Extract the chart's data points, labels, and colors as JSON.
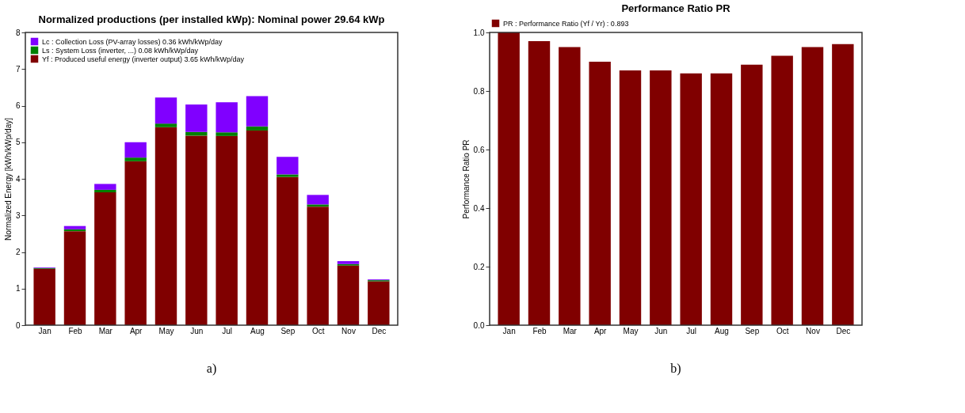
{
  "chart_data": [
    {
      "type": "bar",
      "title": "Normalized productions (per installed kWp):  Nominal power 29.64 kWp",
      "ylabel": "Normalized Energy [kWh/kWp/day]",
      "categories": [
        "Jan",
        "Feb",
        "Mar",
        "Apr",
        "May",
        "Jun",
        "Jul",
        "Aug",
        "Sep",
        "Oct",
        "Nov",
        "Dec"
      ],
      "stacked": true,
      "ylim": [
        0,
        8
      ],
      "yticks": [
        0,
        1,
        2,
        3,
        4,
        5,
        6,
        7,
        8
      ],
      "grid": false,
      "legend": "top left",
      "annotations": [
        "a)"
      ],
      "series": [
        {
          "name": "Yf : Produced useful energy  (inverter output) 3.65 kWh/kWp/day",
          "color": "#800000",
          "values": [
            1.54,
            2.57,
            3.63,
            4.48,
            5.41,
            5.18,
            5.17,
            5.32,
            4.05,
            3.24,
            1.63,
            1.2
          ]
        },
        {
          "name": "Ls : System Loss  (inverter, ...)   0.08 kWh/kWp/day",
          "color": "#008000",
          "values": [
            0.02,
            0.05,
            0.07,
            0.1,
            0.1,
            0.1,
            0.1,
            0.11,
            0.07,
            0.06,
            0.04,
            0.03
          ]
        },
        {
          "name": "Lc : Collection Loss (PV-array losses)   0.36 kWh/kWp/day",
          "color": "#8000ff",
          "values": [
            0.02,
            0.09,
            0.16,
            0.42,
            0.71,
            0.75,
            0.82,
            0.83,
            0.48,
            0.26,
            0.08,
            0.02
          ]
        }
      ]
    },
    {
      "type": "bar",
      "title": "Performance Ratio PR",
      "ylabel": "Performance Ratio PR",
      "categories": [
        "Jan",
        "Feb",
        "Mar",
        "Apr",
        "May",
        "Jun",
        "Jul",
        "Aug",
        "Sep",
        "Oct",
        "Nov",
        "Dec"
      ],
      "ylim": [
        0,
        1
      ],
      "yticks": [
        {
          "value": 0,
          "label": "0.0"
        },
        0.2,
        0.4,
        0.6,
        0.8,
        {
          "value": 1,
          "label": "1.0"
        }
      ],
      "grid": false,
      "legend": "top",
      "annotations": [
        "b)"
      ],
      "series": [
        {
          "name": "PR : Performance Ratio (Yf / Yr) :  0.893",
          "color": "#800000",
          "values": [
            1.0,
            0.97,
            0.95,
            0.9,
            0.87,
            0.87,
            0.86,
            0.86,
            0.89,
            0.92,
            0.95,
            0.96
          ]
        }
      ]
    }
  ]
}
